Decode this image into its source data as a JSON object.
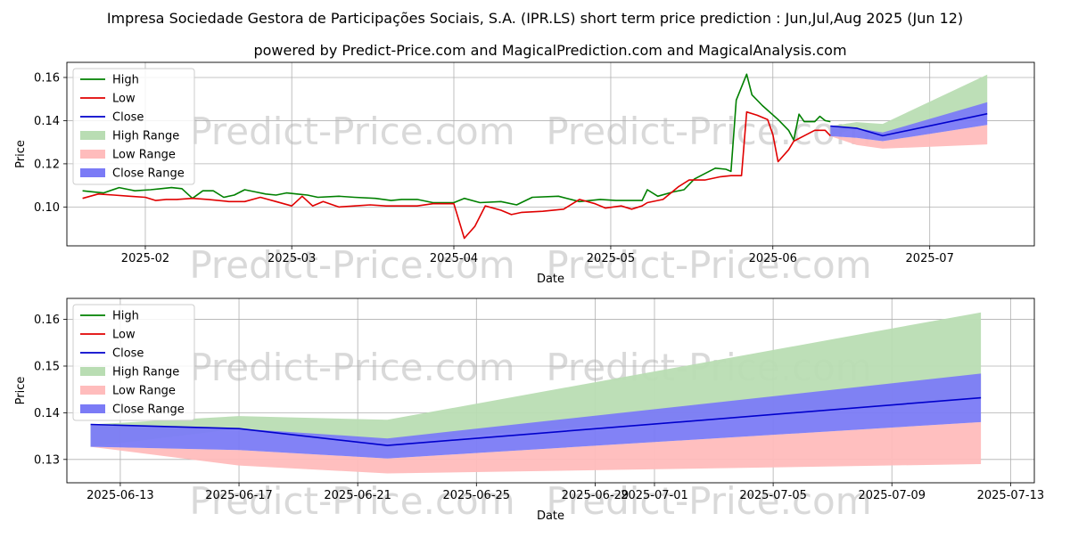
{
  "title": "Impresa Sociedade Gestora de Participações Sociais, S.A. (IPR.LS) short term price prediction : Jun,Jul,Aug 2025 (Jun 12)",
  "subtitle": "powered by Predict-Price.com and MagicalPrediction.com and MagicalAnalysis.com",
  "watermark": "Predict-Price.com",
  "colors": {
    "high": "#008000",
    "low": "#e00000",
    "close": "#0000cc",
    "high_range": "#b9ddb3",
    "low_range": "#ffbcbc",
    "close_range": "#7b7bf6"
  },
  "chart_data": [
    {
      "type": "line",
      "title": "Main chart: history and prediction",
      "xlabel": "Date",
      "ylabel": "Price",
      "xlim": [
        "2025-01-17",
        "2025-07-21"
      ],
      "ylim": [
        0.082,
        0.167
      ],
      "xticks": [
        {
          "date": "2025-02-01",
          "label": "2025-02"
        },
        {
          "date": "2025-03-01",
          "label": "2025-03"
        },
        {
          "date": "2025-04-01",
          "label": "2025-04"
        },
        {
          "date": "2025-05-01",
          "label": "2025-05"
        },
        {
          "date": "2025-06-01",
          "label": "2025-06"
        },
        {
          "date": "2025-07-01",
          "label": "2025-07"
        }
      ],
      "yticks": [
        0.1,
        0.12,
        0.14,
        0.16
      ],
      "ytick_labels": [
        "0.10",
        "0.12",
        "0.14",
        "0.16"
      ],
      "grid": true,
      "legend_position": "upper-left",
      "legend": [
        "High",
        "Low",
        "Close",
        "High Range",
        "Low Range",
        "Close Range"
      ],
      "series": [
        {
          "name": "High",
          "x": [
            "2025-01-20",
            "2025-01-22",
            "2025-01-24",
            "2025-01-27",
            "2025-01-29",
            "2025-01-30",
            "2025-02-02",
            "2025-02-04",
            "2025-02-06",
            "2025-02-08",
            "2025-02-10",
            "2025-02-12",
            "2025-02-14",
            "2025-02-16",
            "2025-02-18",
            "2025-02-20",
            "2025-02-22",
            "2025-02-24",
            "2025-02-26",
            "2025-02-28",
            "2025-03-02",
            "2025-03-04",
            "2025-03-06",
            "2025-03-10",
            "2025-03-13",
            "2025-03-17",
            "2025-03-20",
            "2025-03-22",
            "2025-03-25",
            "2025-03-28",
            "2025-04-01",
            "2025-04-03",
            "2025-04-06",
            "2025-04-10",
            "2025-04-13",
            "2025-04-16",
            "2025-04-21",
            "2025-04-25",
            "2025-04-29",
            "2025-05-02",
            "2025-05-05",
            "2025-05-07",
            "2025-05-08",
            "2025-05-10",
            "2025-05-13",
            "2025-05-15",
            "2025-05-17",
            "2025-05-21",
            "2025-05-23",
            "2025-05-24",
            "2025-05-25",
            "2025-05-27",
            "2025-05-28",
            "2025-05-30",
            "2025-06-02",
            "2025-06-04",
            "2025-06-05",
            "2025-06-06",
            "2025-06-07",
            "2025-06-09",
            "2025-06-10",
            "2025-06-11",
            "2025-06-12"
          ],
          "values": [
            0.1075,
            0.107,
            0.1065,
            0.109,
            0.108,
            0.1075,
            0.108,
            0.1085,
            0.109,
            0.1085,
            0.104,
            0.1075,
            0.1075,
            0.1045,
            0.1055,
            0.108,
            0.107,
            0.106,
            0.1055,
            0.1065,
            0.106,
            0.1055,
            0.1045,
            0.105,
            0.1045,
            0.104,
            0.103,
            0.1035,
            0.1035,
            0.102,
            0.102,
            0.104,
            0.102,
            0.1025,
            0.101,
            0.1045,
            0.105,
            0.1025,
            0.1035,
            0.103,
            0.103,
            0.103,
            0.108,
            0.105,
            0.107,
            0.108,
            0.113,
            0.118,
            0.1175,
            0.1165,
            0.1495,
            0.1615,
            0.152,
            0.147,
            0.1405,
            0.1355,
            0.131,
            0.143,
            0.1395,
            0.1395,
            0.142,
            0.14,
            0.1395
          ]
        },
        {
          "name": "Low",
          "x": [
            "2025-01-20",
            "2025-01-23",
            "2025-01-26",
            "2025-01-29",
            "2025-02-01",
            "2025-02-03",
            "2025-02-05",
            "2025-02-07",
            "2025-02-10",
            "2025-02-13",
            "2025-02-17",
            "2025-02-20",
            "2025-02-23",
            "2025-02-26",
            "2025-03-01",
            "2025-03-03",
            "2025-03-05",
            "2025-03-07",
            "2025-03-10",
            "2025-03-13",
            "2025-03-16",
            "2025-03-19",
            "2025-03-22",
            "2025-03-25",
            "2025-03-28",
            "2025-04-01",
            "2025-04-03",
            "2025-04-05",
            "2025-04-07",
            "2025-04-10",
            "2025-04-12",
            "2025-04-14",
            "2025-04-18",
            "2025-04-22",
            "2025-04-25",
            "2025-04-28",
            "2025-04-30",
            "2025-05-03",
            "2025-05-05",
            "2025-05-07",
            "2025-05-08",
            "2025-05-11",
            "2025-05-14",
            "2025-05-16",
            "2025-05-19",
            "2025-05-22",
            "2025-05-24",
            "2025-05-26",
            "2025-05-27",
            "2025-05-29",
            "2025-05-31",
            "2025-06-01",
            "2025-06-02",
            "2025-06-04",
            "2025-06-05",
            "2025-06-07",
            "2025-06-09",
            "2025-06-11",
            "2025-06-12"
          ],
          "values": [
            0.104,
            0.106,
            0.1055,
            0.105,
            0.1045,
            0.103,
            0.1035,
            0.1035,
            0.104,
            0.1035,
            0.1025,
            0.1025,
            0.1045,
            0.1025,
            0.1005,
            0.105,
            0.1005,
            0.1025,
            0.1,
            0.1005,
            0.101,
            0.1005,
            0.1005,
            0.1005,
            0.1015,
            0.1015,
            0.0855,
            0.091,
            0.1005,
            0.0985,
            0.0965,
            0.0975,
            0.098,
            0.099,
            0.1035,
            0.1015,
            0.0995,
            0.1005,
            0.099,
            0.1005,
            0.102,
            0.1035,
            0.1095,
            0.1125,
            0.1125,
            0.114,
            0.1145,
            0.1145,
            0.144,
            0.1425,
            0.1405,
            0.1335,
            0.121,
            0.1265,
            0.1305,
            0.133,
            0.1355,
            0.1355,
            0.133
          ]
        },
        {
          "name": "Close",
          "x": [
            "2025-06-12",
            "2025-06-17",
            "2025-06-22",
            "2025-07-12"
          ],
          "values": [
            0.1375,
            0.1365,
            0.133,
            0.1432
          ]
        }
      ],
      "ranges": [
        {
          "name": "High Range",
          "x": [
            "2025-06-12",
            "2025-06-17",
            "2025-06-22",
            "2025-07-12"
          ],
          "upper": [
            0.1375,
            0.1393,
            0.1385,
            0.1613
          ],
          "lower": [
            0.1328,
            0.1365,
            0.1335,
            0.1432
          ]
        },
        {
          "name": "Low Range",
          "x": [
            "2025-06-12",
            "2025-06-17",
            "2025-06-22",
            "2025-07-12"
          ],
          "upper": [
            0.1328,
            0.132,
            0.1305,
            0.138
          ],
          "lower": [
            0.1328,
            0.1287,
            0.127,
            0.129
          ]
        },
        {
          "name": "Close Range",
          "x": [
            "2025-06-12",
            "2025-06-17",
            "2025-06-22",
            "2025-07-12"
          ],
          "upper": [
            0.1375,
            0.1365,
            0.1345,
            0.1485
          ],
          "lower": [
            0.1328,
            0.132,
            0.1305,
            0.138
          ]
        }
      ]
    },
    {
      "type": "line",
      "title": "Zoomed prediction chart",
      "xlabel": "Date",
      "ylabel": "Price",
      "xlim": [
        "2025-06-11.2",
        "2025-07-13.8"
      ],
      "ylim": [
        0.125,
        0.1645
      ],
      "xticks": [
        {
          "date": "2025-06-13",
          "label": "2025-06-13"
        },
        {
          "date": "2025-06-17",
          "label": "2025-06-17"
        },
        {
          "date": "2025-06-21",
          "label": "2025-06-21"
        },
        {
          "date": "2025-06-25",
          "label": "2025-06-25"
        },
        {
          "date": "2025-06-29",
          "label": "2025-06-29"
        },
        {
          "date": "2025-07-01",
          "label": "2025-07-01"
        },
        {
          "date": "2025-07-05",
          "label": "2025-07-05"
        },
        {
          "date": "2025-07-09",
          "label": "2025-07-09"
        },
        {
          "date": "2025-07-13",
          "label": "2025-07-13"
        }
      ],
      "yticks": [
        0.13,
        0.14,
        0.15,
        0.16
      ],
      "ytick_labels": [
        "0.13",
        "0.14",
        "0.15",
        "0.16"
      ],
      "grid": true,
      "legend_position": "upper-left",
      "legend": [
        "High",
        "Low",
        "Close",
        "High Range",
        "Low Range",
        "Close Range"
      ],
      "series": [
        {
          "name": "Close",
          "x": [
            "2025-06-12",
            "2025-06-17",
            "2025-06-22",
            "2025-07-12"
          ],
          "values": [
            0.1375,
            0.1366,
            0.133,
            0.1432
          ]
        }
      ],
      "ranges": [
        {
          "name": "High Range",
          "x": [
            "2025-06-12",
            "2025-06-17",
            "2025-06-22",
            "2025-07-12"
          ],
          "upper": [
            0.1375,
            0.1393,
            0.1385,
            0.1615
          ],
          "lower": [
            0.1327,
            0.1366,
            0.1338,
            0.1432
          ]
        },
        {
          "name": "Low Range",
          "x": [
            "2025-06-12",
            "2025-06-17",
            "2025-06-22",
            "2025-07-12"
          ],
          "upper": [
            0.1327,
            0.132,
            0.1302,
            0.138
          ],
          "lower": [
            0.1327,
            0.1287,
            0.127,
            0.129
          ]
        },
        {
          "name": "Close Range",
          "x": [
            "2025-06-12",
            "2025-06-17",
            "2025-06-22",
            "2025-07-12"
          ],
          "upper": [
            0.1375,
            0.1366,
            0.1345,
            0.1484
          ],
          "lower": [
            0.1327,
            0.132,
            0.1302,
            0.138
          ]
        }
      ]
    }
  ]
}
